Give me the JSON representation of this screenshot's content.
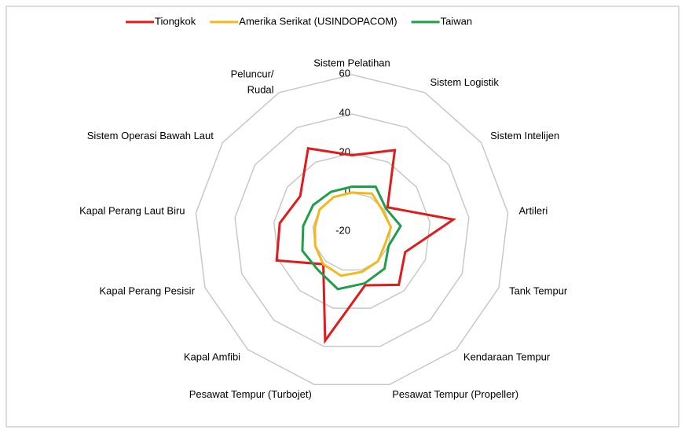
{
  "chart_data": {
    "type": "radar",
    "categories": [
      "Sistem Pelatihan",
      "Sistem Logistik",
      "Sistem Intelijen",
      "Artileri",
      "Tank Tempur",
      "Kendaraan Tempur",
      "Pesawat Tempur (Propeller)",
      "Pesawat Tempur (Turbojet)",
      "Kapal Amfibi",
      "Kapal Perang Pesisir",
      "Kapal Perang Laut Biru",
      "Sistem Operasi Bawah Laut",
      "Peluncur/ Rudal"
    ],
    "series": [
      {
        "name": "Tiongkok",
        "color": "#e01b1b",
        "values": [
          19,
          27,
          2,
          32,
          9,
          16,
          8,
          37,
          2,
          21,
          17,
          12,
          28
        ]
      },
      {
        "name": "Amerika Serikat (USINDOPACOM)",
        "color": "#f2b81c",
        "values": [
          0,
          2,
          -1,
          0,
          -2,
          0,
          1,
          3,
          2,
          0,
          -1,
          0,
          0
        ]
      },
      {
        "name": "Taiwan",
        "color": "#1f9e4a",
        "values": [
          3,
          6,
          1,
          5,
          0,
          5,
          7,
          10,
          6,
          7,
          5,
          4,
          3
        ]
      }
    ],
    "rlim": [
      -20,
      60
    ],
    "rticks": [
      -20,
      0,
      20,
      40,
      60
    ],
    "grid": true,
    "legend": "top"
  }
}
